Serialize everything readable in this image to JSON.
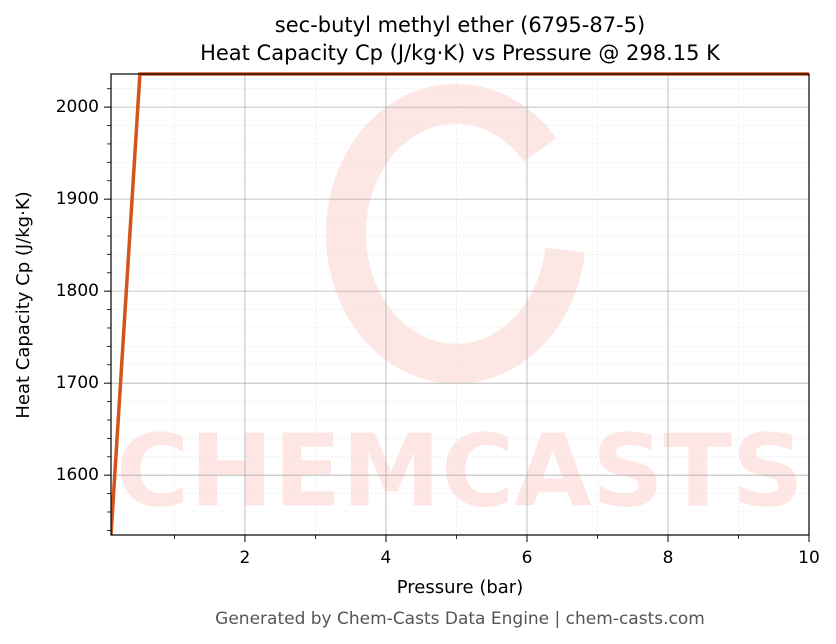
{
  "chart_data": {
    "type": "line",
    "title": "sec-butyl methyl ether (6795-87-5)",
    "subtitle": "Heat Capacity Cp (J/kg·K) vs Pressure @ 298.15 K",
    "x_label": "Pressure (bar)",
    "y_label": "Heat Capacity Cp (J/kg·K)",
    "watermark": "CHEMCASTS",
    "footer": "Generated by Chem-Casts Data Engine | chem-casts.com",
    "x": [
      0.1,
      0.51,
      10
    ],
    "series": [
      {
        "name": "Cp",
        "color": "#d4541c",
        "values": [
          1535,
          2036,
          2036
        ]
      }
    ],
    "xlim": [
      0.1,
      10
    ],
    "ylim": [
      1535,
      2036
    ],
    "xticks": [
      2,
      4,
      6,
      8,
      10
    ],
    "yticks": [
      1600,
      1700,
      1800,
      1900,
      2000
    ],
    "xticks_minor": [
      1,
      3,
      5,
      7,
      9
    ],
    "yticks_minor": [
      1540,
      1560,
      1580,
      1620,
      1640,
      1660,
      1680,
      1720,
      1740,
      1760,
      1780,
      1820,
      1840,
      1860,
      1880,
      1920,
      1940,
      1960,
      1980,
      2020
    ],
    "grid": true
  }
}
